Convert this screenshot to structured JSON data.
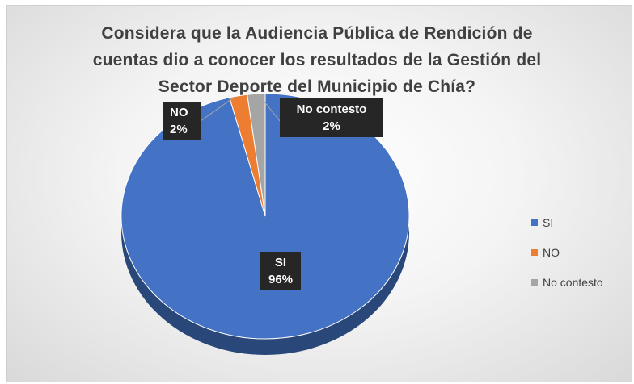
{
  "chart_data": {
    "type": "pie",
    "title_lines": [
      "Considera que la Audiencia Pública de Rendición de",
      "cuentas dio a conocer los resultados de la Gestión del",
      "Sector Deporte del Municipio de Chía?"
    ],
    "slices": [
      {
        "name": "SI",
        "value": 96,
        "label": "96%",
        "color": "#4472C4"
      },
      {
        "name": "NO",
        "value": 2,
        "label": "2%",
        "color": "#ED7D31"
      },
      {
        "name": "No contesto",
        "value": 2,
        "label": "2%",
        "color": "#A5A5A5"
      }
    ],
    "legend_position": "right",
    "style": "3d-pie"
  }
}
